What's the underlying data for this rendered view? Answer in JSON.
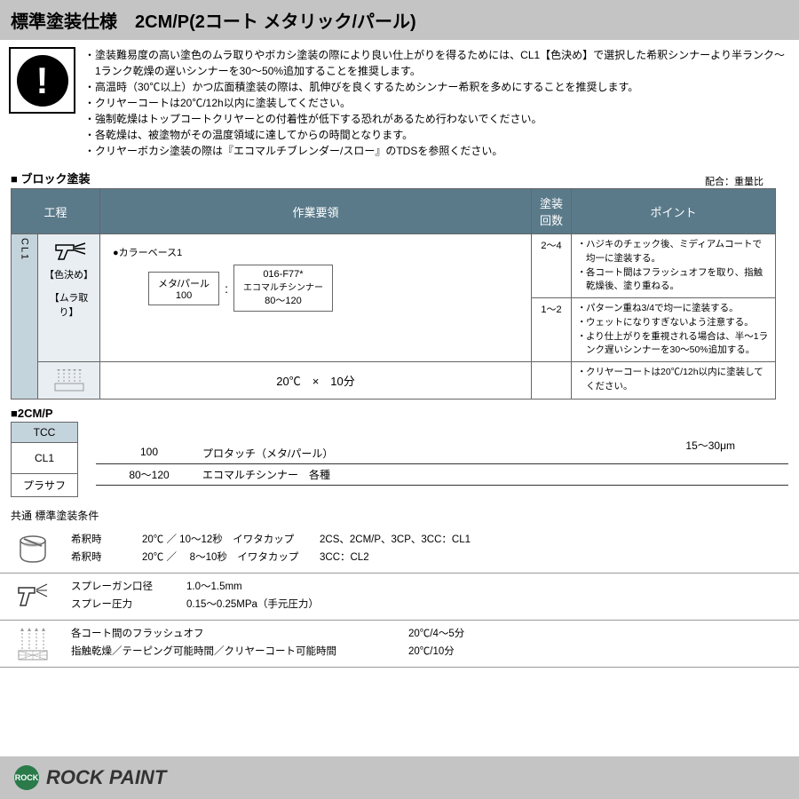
{
  "header": {
    "title": "標準塗装仕様　2CM/P(2コート メタリック/パール)"
  },
  "info_list": [
    "塗装難易度の高い塗色のムラ取りやボカシ塗装の際により良い仕上がりを得るためには、CL1【色決め】で選択した希釈シンナーより半ランク～1ランク乾燥の遅いシンナーを30～50%追加することを推奨します。",
    "高温時（30℃以上）かつ広面積塗装の際は、肌伸びを良くするためシンナー希釈を多めにすることを推奨します。",
    "クリヤーコートは20℃/12h以内に塗装してください。",
    "強制乾燥はトップコートクリヤーとの付着性が低下する恐れがあるため行わないでください。",
    "各乾燥は、被塗物がその温度領域に達してからの時間となります。",
    "クリヤーボカシ塗装の際は『エコマルチブレンダー/スロー』のTDSを参照ください。"
  ],
  "block_label": "■ ブロック塗装",
  "ratio_label": "配合：重量比",
  "table": {
    "headers": {
      "process": "工程",
      "work": "作業要領",
      "count": "塗装回数",
      "point": "ポイント"
    },
    "cl1": "CL1",
    "sub1": "【色決め】",
    "sub2": "【ムラ取り】",
    "color_base": "●カラーベース1",
    "box1": {
      "label": "メタ/パール",
      "value": "100"
    },
    "box2": {
      "label": "016-F77*",
      "sublabel": "エコマルチシンナー",
      "value": "80～120"
    },
    "count1": "2～4",
    "count2": "1～2",
    "points1": [
      "ハジキのチェック後、ミディアムコートで均一に塗装する。",
      "各コート間はフラッシュオフを取り、指触乾燥後、塗り重ねる。"
    ],
    "points2": [
      "パターン重ね3/4で均一に塗装する。",
      "ウェットになりすぎないよう注意する。",
      "より仕上がりを重視される場合は、半～1ランク遅いシンナーを30～50%追加する。"
    ],
    "drying": "20℃　×　10分",
    "points3": [
      "クリヤーコートは20℃/12h以内に塗装してください。"
    ]
  },
  "layer": {
    "title": "■2CM/P",
    "tcc": "TCC",
    "cl1": "CL1",
    "primer": "プラサフ",
    "line1": {
      "v1": "100",
      "v2": "プロタッチ（メタ/パール）"
    },
    "line2": {
      "v1": "80～120",
      "v2": "エコマルチシンナー　各種"
    },
    "thickness": "15～30μm"
  },
  "cond": {
    "title": "共通 標準塗装条件",
    "viscosity": [
      {
        "l1": "希釈時",
        "l2": "20℃ ／ 10～12秒　イワタカップ",
        "l3": "2CS、2CM/P、3CP、3CC：CL1"
      },
      {
        "l1": "希釈時",
        "l2": "20℃ ／ 　8～10秒　イワタカップ",
        "l3": "3CC：CL2"
      }
    ],
    "spray": [
      {
        "l1": "スプレーガン口径",
        "l2": "1.0～1.5mm"
      },
      {
        "l1": "スプレー圧力",
        "l2": "0.15～0.25MPa（手元圧力）"
      }
    ],
    "flash": [
      {
        "l1": "各コート間のフラッシュオフ",
        "l2": "20℃/4～5分"
      },
      {
        "l1": "指触乾燥／テーピング可能時間／クリヤーコート可能時間",
        "l2": "20℃/10分"
      }
    ]
  },
  "footer": {
    "logo": "ROCK",
    "text": "ROCK PAINT"
  }
}
